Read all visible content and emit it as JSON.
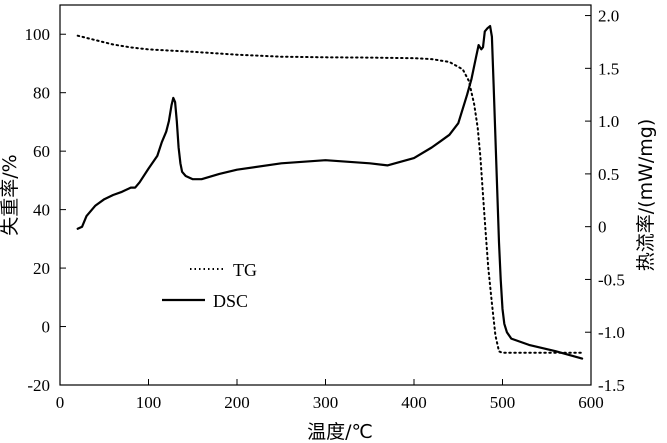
{
  "chart_data": {
    "type": "line",
    "xlabel": "温度/℃",
    "ylabel_left": "失重率/%",
    "ylabel_right": "热流率/(mW/mg)",
    "xlim": [
      0,
      600
    ],
    "ylim_left": [
      -20,
      110
    ],
    "ylim_right": [
      -1.5,
      2.1
    ],
    "x_ticks": [
      0,
      100,
      200,
      300,
      400,
      500,
      600
    ],
    "y_left_ticks": [
      -20,
      0,
      20,
      40,
      60,
      80,
      100
    ],
    "y_right_ticks": [
      -1.5,
      -1.0,
      -0.5,
      0,
      0.5,
      1.0,
      1.5,
      2.0
    ],
    "x_tick_labels": [
      "0",
      "100",
      "200",
      "300",
      "400",
      "500",
      "600"
    ],
    "y_left_tick_labels": [
      "-20",
      "0",
      "20",
      "40",
      "60",
      "80",
      "100"
    ],
    "y_right_tick_labels": [
      "-1.5",
      "-1.0",
      "-0.5",
      "0",
      "0.5",
      "1.0",
      "1.5",
      "2.0"
    ],
    "legend": {
      "position": "lower-left",
      "entries": [
        "TG",
        "DSC"
      ]
    },
    "series": [
      {
        "name": "TG",
        "axis": "left",
        "style": "dotted",
        "x": [
          20,
          40,
          60,
          80,
          100,
          150,
          200,
          250,
          300,
          350,
          400,
          420,
          440,
          455,
          462,
          468,
          472,
          475,
          478,
          481,
          484,
          488,
          492,
          496,
          500,
          505,
          520,
          560,
          590
        ],
        "values": [
          99.5,
          98,
          96.5,
          95.5,
          94.8,
          94,
          93,
          92.3,
          92.1,
          92,
          91.8,
          91.5,
          90.5,
          88,
          84,
          76,
          68,
          58,
          45,
          32,
          20,
          8,
          -3,
          -8.5,
          -9,
          -9,
          -9,
          -9,
          -9
        ]
      },
      {
        "name": "DSC",
        "axis": "right",
        "style": "solid",
        "x": [
          20,
          25,
          30,
          40,
          50,
          60,
          70,
          80,
          85,
          90,
          100,
          110,
          115,
          120,
          123,
          126,
          128,
          130,
          132,
          134,
          136,
          138,
          142,
          150,
          160,
          180,
          200,
          250,
          300,
          350,
          370,
          400,
          420,
          430,
          440,
          450,
          460,
          465,
          470,
          473,
          476,
          478,
          480,
          483,
          486,
          488,
          490,
          492,
          494,
          496,
          498,
          500,
          502,
          505,
          510,
          530,
          560,
          590
        ],
        "values": [
          -0.02,
          0.0,
          0.1,
          0.2,
          0.26,
          0.3,
          0.33,
          0.37,
          0.37,
          0.42,
          0.55,
          0.67,
          0.8,
          0.9,
          1.0,
          1.15,
          1.22,
          1.18,
          1.0,
          0.75,
          0.6,
          0.52,
          0.48,
          0.45,
          0.45,
          0.5,
          0.54,
          0.6,
          0.63,
          0.6,
          0.58,
          0.65,
          0.75,
          0.81,
          0.87,
          0.98,
          1.25,
          1.4,
          1.6,
          1.72,
          1.68,
          1.7,
          1.85,
          1.88,
          1.9,
          1.8,
          1.35,
          0.85,
          0.35,
          -0.15,
          -0.5,
          -0.78,
          -0.92,
          -1.0,
          -1.06,
          -1.12,
          -1.18,
          -1.25
        ]
      }
    ]
  }
}
